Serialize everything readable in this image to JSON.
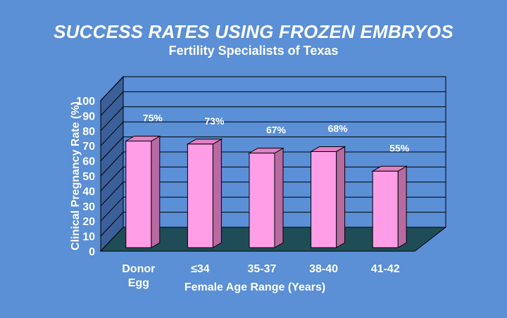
{
  "title": "SUCCESS RATES USING FROZEN EMBRYOS",
  "subtitle": "Fertility Specialists of Texas",
  "chart_data": {
    "type": "bar",
    "style": "3d",
    "categories": [
      [
        "Donor",
        "Egg"
      ],
      [
        "≤34"
      ],
      [
        "35-37"
      ],
      [
        "38-40"
      ],
      [
        "41-42"
      ]
    ],
    "values": [
      75,
      73,
      67,
      68,
      55
    ],
    "data_labels": [
      "75%",
      "73%",
      "67%",
      "68%",
      "55%"
    ],
    "title": "SUCCESS RATES USING FROZEN EMBRYOS",
    "subtitle": "Fertility Specialists of Texas",
    "xlabel": "Female Age Range (Years)",
    "ylabel": "Clinical Pregnancy Rate (%)",
    "ylim": [
      0,
      100
    ],
    "yticks": [
      0,
      10,
      20,
      30,
      40,
      50,
      60,
      70,
      80,
      90,
      100
    ],
    "grid": true,
    "colors": {
      "background": "#5b8fd6",
      "bar_front": "#ff9ee6",
      "bar_side": "#b86aa2",
      "bar_top": "#e37fc5",
      "floor": "#1f4d57",
      "back_wall": "#5b8fd6",
      "side_wall": "#3b5f99",
      "grid": "#000000"
    }
  }
}
